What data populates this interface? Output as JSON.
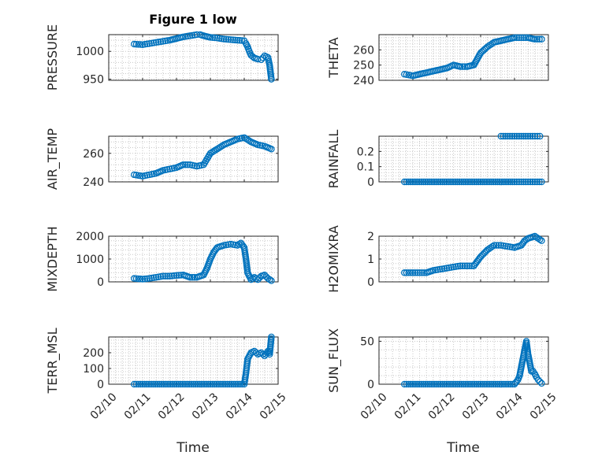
{
  "figure_title": "Figure 1 low",
  "xlabel": "Time",
  "marker_color": "#0072bd",
  "x_ticks": [
    "02/10",
    "02/11",
    "02/12",
    "02/13",
    "02/14",
    "02/15"
  ],
  "chart_data": [
    {
      "id": "pressure",
      "type": "scatter",
      "ylabel": "PRESSURE",
      "xlim": [
        10,
        15
      ],
      "ylim": [
        948,
        1030
      ],
      "yticks": [
        950,
        1000
      ],
      "x": [
        10.75,
        11.0,
        11.2,
        11.4,
        11.6,
        11.8,
        12.0,
        12.2,
        12.4,
        12.6,
        12.7,
        12.8,
        13.0,
        13.2,
        13.4,
        13.6,
        13.8,
        14.0,
        14.05,
        14.1,
        14.15,
        14.2,
        14.3,
        14.4,
        14.5,
        14.6,
        14.7,
        14.75,
        14.8
      ],
      "values": [
        1013,
        1012,
        1014,
        1016,
        1018,
        1020,
        1023,
        1026,
        1028,
        1030,
        1030,
        1028,
        1025,
        1024,
        1022,
        1021,
        1020,
        1019,
        1014,
        1008,
        1000,
        993,
        988,
        986,
        985,
        992,
        989,
        975,
        950
      ]
    },
    {
      "id": "theta",
      "type": "scatter",
      "ylabel": "THETA",
      "xlim": [
        10,
        15
      ],
      "ylim": [
        240,
        270
      ],
      "yticks": [
        240,
        250,
        260
      ],
      "x": [
        10.75,
        11.0,
        11.2,
        11.4,
        11.6,
        11.8,
        12.0,
        12.2,
        12.4,
        12.6,
        12.8,
        12.9,
        13.0,
        13.2,
        13.4,
        13.6,
        13.8,
        14.0,
        14.2,
        14.4,
        14.6,
        14.8
      ],
      "values": [
        244,
        243,
        244,
        245,
        246,
        247,
        248,
        250,
        249,
        249,
        250,
        254,
        258,
        262,
        265,
        266,
        267,
        268,
        268,
        268,
        267,
        267
      ]
    },
    {
      "id": "air_temp",
      "type": "scatter",
      "ylabel": "AIR_TEMP",
      "xlim": [
        10,
        15
      ],
      "ylim": [
        240,
        272
      ],
      "yticks": [
        240,
        260
      ],
      "x": [
        10.75,
        11.0,
        11.2,
        11.4,
        11.6,
        11.8,
        12.0,
        12.2,
        12.4,
        12.6,
        12.8,
        12.9,
        13.0,
        13.2,
        13.4,
        13.6,
        13.8,
        14.0,
        14.2,
        14.4,
        14.6,
        14.8
      ],
      "values": [
        245,
        244,
        245,
        246,
        248,
        249,
        250,
        252,
        252,
        251,
        252,
        256,
        260,
        263,
        266,
        268,
        270,
        271,
        268,
        266,
        265,
        263
      ]
    },
    {
      "id": "rainfall",
      "type": "scatter",
      "ylabel": "RAINFALL",
      "xlim": [
        10,
        15
      ],
      "ylim": [
        0,
        0.3
      ],
      "yticks": [
        0,
        0.1,
        0.2
      ],
      "x": [
        10.75,
        11.0,
        11.25,
        11.5,
        11.75,
        12.0,
        12.25,
        12.5,
        12.75,
        13.0,
        13.25,
        13.5,
        13.75,
        14.0,
        14.2,
        14.4,
        14.6,
        14.8,
        13.6,
        13.8,
        14.0,
        14.2,
        14.4,
        14.6,
        14.75
      ],
      "values": [
        0,
        0,
        0,
        0,
        0,
        0,
        0,
        0,
        0,
        0,
        0,
        0,
        0,
        0,
        0,
        0,
        0,
        0,
        0.3,
        0.3,
        0.3,
        0.3,
        0.3,
        0.3,
        0.3
      ]
    },
    {
      "id": "mixdepth",
      "type": "scatter",
      "ylabel": "MIXDEPTH",
      "xlim": [
        10,
        15
      ],
      "ylim": [
        0,
        2000
      ],
      "yticks": [
        0,
        1000,
        2000
      ],
      "x": [
        10.75,
        11.0,
        11.2,
        11.4,
        11.6,
        11.8,
        12.0,
        12.2,
        12.4,
        12.6,
        12.8,
        12.9,
        13.0,
        13.1,
        13.2,
        13.4,
        13.6,
        13.8,
        13.9,
        14.0,
        14.05,
        14.1,
        14.2,
        14.3,
        14.4,
        14.5,
        14.6,
        14.7,
        14.8
      ],
      "values": [
        150,
        120,
        150,
        200,
        250,
        250,
        280,
        300,
        200,
        200,
        300,
        600,
        1000,
        1300,
        1500,
        1600,
        1650,
        1600,
        1700,
        1500,
        1000,
        400,
        100,
        200,
        100,
        250,
        300,
        150,
        50
      ]
    },
    {
      "id": "h2omixra",
      "type": "scatter",
      "ylabel": "H2OMIXRA",
      "xlim": [
        10,
        15
      ],
      "ylim": [
        0,
        2
      ],
      "yticks": [
        0,
        1,
        2
      ],
      "x": [
        10.75,
        11.0,
        11.2,
        11.4,
        11.6,
        11.8,
        12.0,
        12.2,
        12.4,
        12.6,
        12.8,
        12.9,
        13.0,
        13.2,
        13.4,
        13.6,
        13.8,
        14.0,
        14.2,
        14.3,
        14.4,
        14.5,
        14.6,
        14.7,
        14.8
      ],
      "values": [
        0.4,
        0.4,
        0.4,
        0.4,
        0.5,
        0.55,
        0.6,
        0.65,
        0.7,
        0.7,
        0.7,
        0.9,
        1.1,
        1.4,
        1.6,
        1.6,
        1.55,
        1.5,
        1.6,
        1.8,
        1.9,
        1.95,
        2.0,
        1.9,
        1.8
      ]
    },
    {
      "id": "terr_msl",
      "type": "scatter",
      "ylabel": "TERR_MSL",
      "xlim": [
        10,
        15
      ],
      "ylim": [
        0,
        300
      ],
      "yticks": [
        0,
        100,
        200
      ],
      "x": [
        10.75,
        11.0,
        11.25,
        11.5,
        11.75,
        12.0,
        12.25,
        12.5,
        12.75,
        13.0,
        13.25,
        13.5,
        13.75,
        14.0,
        14.05,
        14.1,
        14.15,
        14.2,
        14.3,
        14.4,
        14.5,
        14.6,
        14.7,
        14.75,
        14.8
      ],
      "values": [
        0,
        0,
        0,
        0,
        0,
        0,
        0,
        0,
        0,
        0,
        0,
        0,
        0,
        0,
        70,
        160,
        180,
        200,
        210,
        190,
        200,
        180,
        210,
        190,
        300
      ]
    },
    {
      "id": "sun_flux",
      "type": "scatter",
      "ylabel": "SUN_FLUX",
      "xlim": [
        10,
        15
      ],
      "ylim": [
        0,
        55
      ],
      "yticks": [
        0,
        50
      ],
      "x": [
        10.75,
        11.0,
        11.25,
        11.5,
        11.75,
        12.0,
        12.25,
        12.5,
        12.75,
        13.0,
        13.25,
        13.5,
        13.75,
        14.0,
        14.1,
        14.15,
        14.2,
        14.25,
        14.3,
        14.35,
        14.4,
        14.45,
        14.5,
        14.55,
        14.6,
        14.65,
        14.7,
        14.75,
        14.8
      ],
      "values": [
        0,
        0,
        0,
        0,
        0,
        0,
        0,
        0,
        0,
        0,
        0,
        0,
        0,
        0,
        5,
        10,
        20,
        30,
        40,
        50,
        35,
        25,
        15,
        15,
        12,
        8,
        5,
        3,
        1
      ]
    }
  ]
}
